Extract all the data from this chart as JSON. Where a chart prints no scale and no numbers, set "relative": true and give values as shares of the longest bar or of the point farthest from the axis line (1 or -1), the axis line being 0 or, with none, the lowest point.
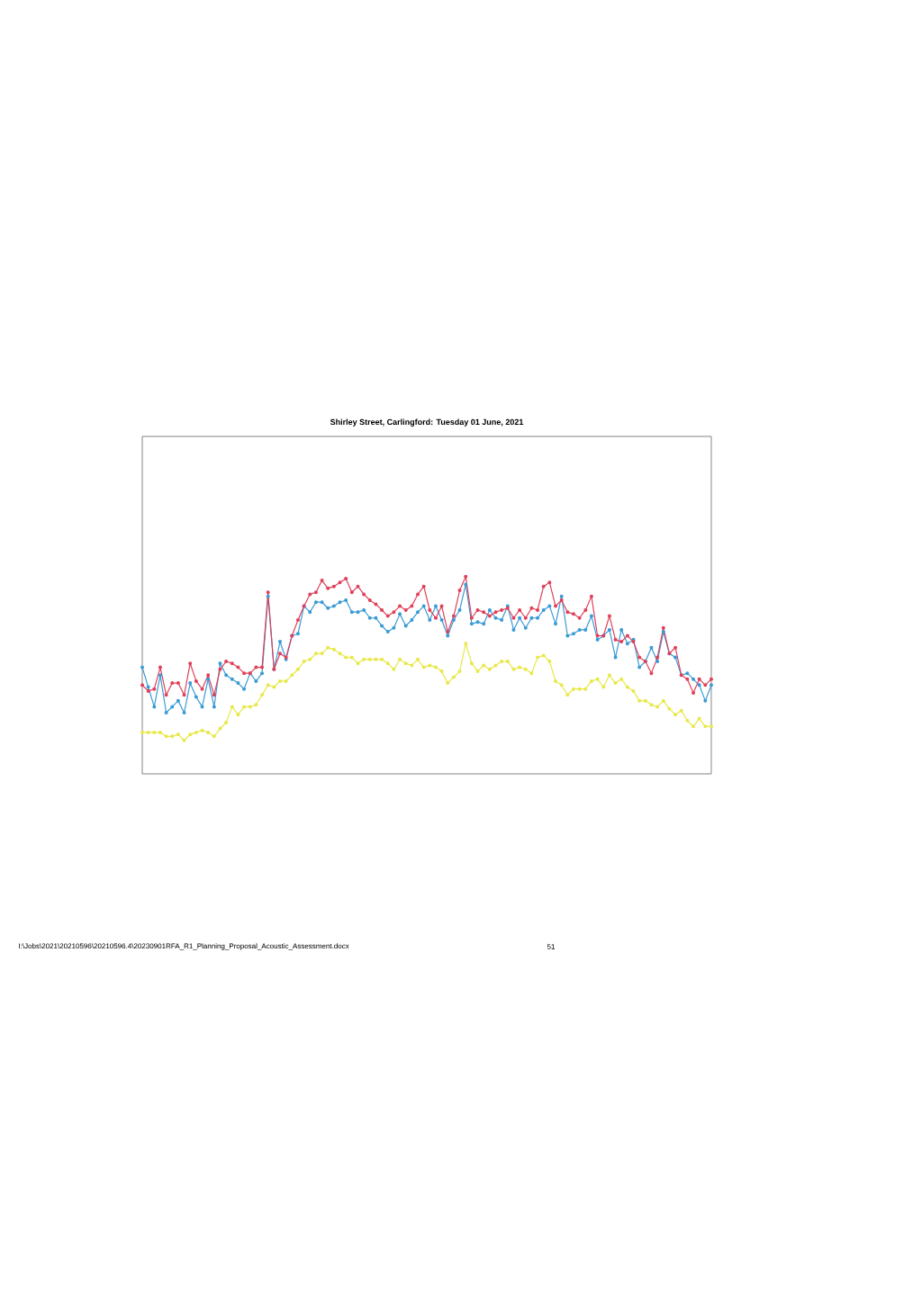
{
  "chart_data": {
    "type": "line",
    "title": "Shirley Street, Carlingford: Tuesday 01 June, 2021",
    "relative": true,
    "marker": "circle",
    "line_style": "solid",
    "categories": [
      null,
      null,
      null,
      null,
      null,
      null,
      null,
      null,
      null,
      null,
      null,
      null,
      null,
      null,
      null,
      null,
      null,
      null,
      null,
      null,
      null,
      null,
      null,
      null,
      null,
      null,
      null,
      null,
      null,
      null,
      null,
      null,
      null,
      null,
      null,
      null,
      null,
      null,
      null,
      null,
      null,
      null,
      null,
      null,
      null,
      null,
      null,
      null,
      null,
      null,
      null,
      null,
      null,
      null,
      null,
      null,
      null,
      null,
      null,
      null,
      null,
      null,
      null,
      null,
      null,
      null,
      null,
      null,
      null,
      null,
      null,
      null,
      null,
      null,
      null,
      null,
      null,
      null,
      null,
      null,
      null,
      null,
      null,
      null,
      null,
      null,
      null,
      null,
      null,
      null,
      null,
      null,
      null,
      null,
      null,
      null
    ],
    "series": [
      {
        "color": "#3a9bd5",
        "values": [
          0.54,
          0.44,
          0.34,
          0.5,
          0.31,
          0.34,
          0.37,
          0.31,
          0.46,
          0.39,
          0.34,
          0.48,
          0.34,
          0.56,
          0.5,
          0.48,
          0.46,
          0.43,
          0.51,
          0.47,
          0.51,
          0.9,
          0.53,
          0.67,
          0.58,
          0.7,
          0.71,
          0.85,
          0.82,
          0.87,
          0.87,
          0.84,
          0.85,
          0.87,
          0.88,
          0.82,
          0.82,
          0.83,
          0.79,
          0.79,
          0.75,
          0.72,
          0.74,
          0.81,
          0.75,
          0.78,
          0.82,
          0.85,
          0.78,
          0.85,
          0.78,
          0.7,
          0.78,
          0.83,
          0.96,
          0.76,
          0.77,
          0.76,
          0.83,
          0.79,
          0.78,
          0.85,
          0.73,
          0.79,
          0.74,
          0.79,
          0.79,
          0.83,
          0.85,
          0.76,
          0.9,
          0.7,
          0.71,
          0.73,
          0.73,
          0.8,
          0.68,
          0.7,
          0.73,
          0.59,
          0.73,
          0.66,
          0.68,
          0.54,
          0.57,
          0.64,
          0.57,
          0.72,
          0.61,
          0.59,
          0.5,
          0.51,
          0.48,
          0.45,
          0.37,
          0.45
        ]
      },
      {
        "color": "#e0405a",
        "values": [
          0.45,
          0.42,
          0.43,
          0.54,
          0.4,
          0.46,
          0.46,
          0.4,
          0.56,
          0.47,
          0.43,
          0.5,
          0.4,
          0.53,
          0.57,
          0.56,
          0.54,
          0.51,
          0.51,
          0.54,
          0.54,
          0.92,
          0.53,
          0.61,
          0.59,
          0.7,
          0.78,
          0.85,
          0.91,
          0.92,
          0.98,
          0.94,
          0.95,
          0.97,
          0.99,
          0.92,
          0.95,
          0.91,
          0.88,
          0.86,
          0.83,
          0.8,
          0.82,
          0.85,
          0.83,
          0.85,
          0.91,
          0.95,
          0.83,
          0.79,
          0.85,
          0.72,
          0.8,
          0.93,
          1.0,
          0.79,
          0.83,
          0.82,
          0.8,
          0.82,
          0.83,
          0.84,
          0.79,
          0.83,
          0.79,
          0.84,
          0.83,
          0.95,
          0.97,
          0.85,
          0.88,
          0.82,
          0.81,
          0.79,
          0.83,
          0.9,
          0.7,
          0.7,
          0.8,
          0.68,
          0.67,
          0.7,
          0.67,
          0.59,
          0.57,
          0.51,
          0.59,
          0.74,
          0.61,
          0.64,
          0.5,
          0.48,
          0.41,
          0.48,
          0.45,
          0.48
        ]
      },
      {
        "color": "#e8e84a",
        "values": [
          0.21,
          0.21,
          0.21,
          0.21,
          0.19,
          0.19,
          0.2,
          0.17,
          0.2,
          0.21,
          0.22,
          0.21,
          0.19,
          0.23,
          0.26,
          0.34,
          0.3,
          0.34,
          0.34,
          0.35,
          0.4,
          0.45,
          0.44,
          0.47,
          0.47,
          0.5,
          0.53,
          0.57,
          0.58,
          0.61,
          0.61,
          0.64,
          0.63,
          0.61,
          0.59,
          0.59,
          0.56,
          0.58,
          0.58,
          0.58,
          0.58,
          0.56,
          0.53,
          0.58,
          0.56,
          0.55,
          0.58,
          0.54,
          0.55,
          0.54,
          0.52,
          0.46,
          0.49,
          0.52,
          0.66,
          0.56,
          0.52,
          0.55,
          0.53,
          0.55,
          0.57,
          0.57,
          0.53,
          0.54,
          0.53,
          0.51,
          0.59,
          0.6,
          0.57,
          0.47,
          0.45,
          0.4,
          0.43,
          0.43,
          0.43,
          0.47,
          0.48,
          0.44,
          0.5,
          0.46,
          0.48,
          0.44,
          0.42,
          0.37,
          0.37,
          0.35,
          0.34,
          0.37,
          0.33,
          0.3,
          0.32,
          0.27,
          0.24,
          0.28,
          0.24,
          0.24
        ]
      }
    ],
    "annotations": [
      "I:\\Jobs\\2021\\20210596\\20210596.4\\20230901RFA_R1_Planning_Proposal_Acoustic_Assessment.docx",
      "51"
    ]
  }
}
